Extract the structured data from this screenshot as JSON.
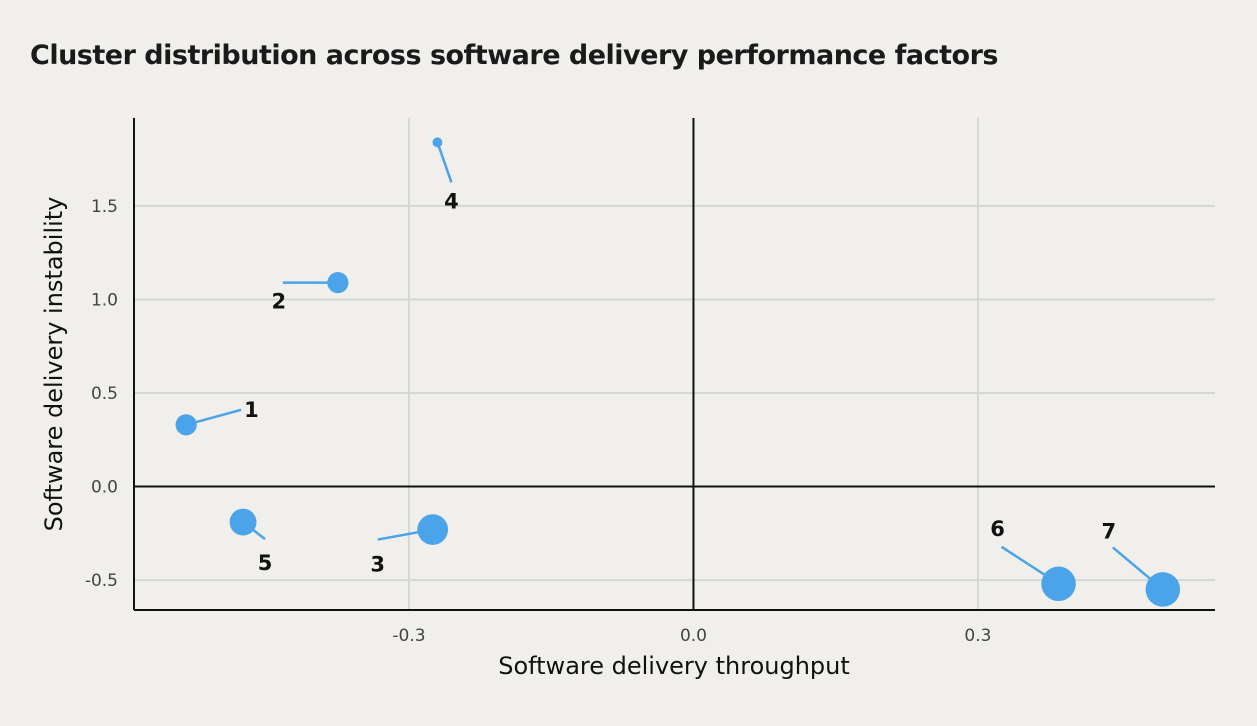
{
  "chart_data": {
    "type": "scatter",
    "title": "Cluster distribution across software delivery performance factors",
    "xlabel": "Software delivery throughput",
    "ylabel": "Software delivery instability",
    "xlim": [
      -0.59,
      0.55
    ],
    "ylim": [
      -0.66,
      1.97
    ],
    "xticks": [
      -0.3,
      0.0,
      0.3
    ],
    "xtick_labels": [
      "-0.3",
      "0.0",
      "0.3"
    ],
    "yticks": [
      -0.5,
      0.0,
      0.5,
      1.0,
      1.5
    ],
    "ytick_labels": [
      "-0.5",
      "0.0",
      "0.5",
      "1.0",
      "1.5"
    ],
    "grid": true,
    "point_color": "#4ba3ea",
    "points": [
      {
        "label": "1",
        "x": -0.535,
        "y": 0.33,
        "size": 0.4
      },
      {
        "label": "2",
        "x": -0.375,
        "y": 1.09,
        "size": 0.4
      },
      {
        "label": "3",
        "x": -0.275,
        "y": -0.23,
        "size": 0.65
      },
      {
        "label": "4",
        "x": -0.27,
        "y": 1.84,
        "size": 0.1
      },
      {
        "label": "5",
        "x": -0.475,
        "y": -0.19,
        "size": 0.55
      },
      {
        "label": "6",
        "x": 0.385,
        "y": -0.52,
        "size": 0.75
      },
      {
        "label": "7",
        "x": 0.495,
        "y": -0.55,
        "size": 0.75
      }
    ]
  }
}
